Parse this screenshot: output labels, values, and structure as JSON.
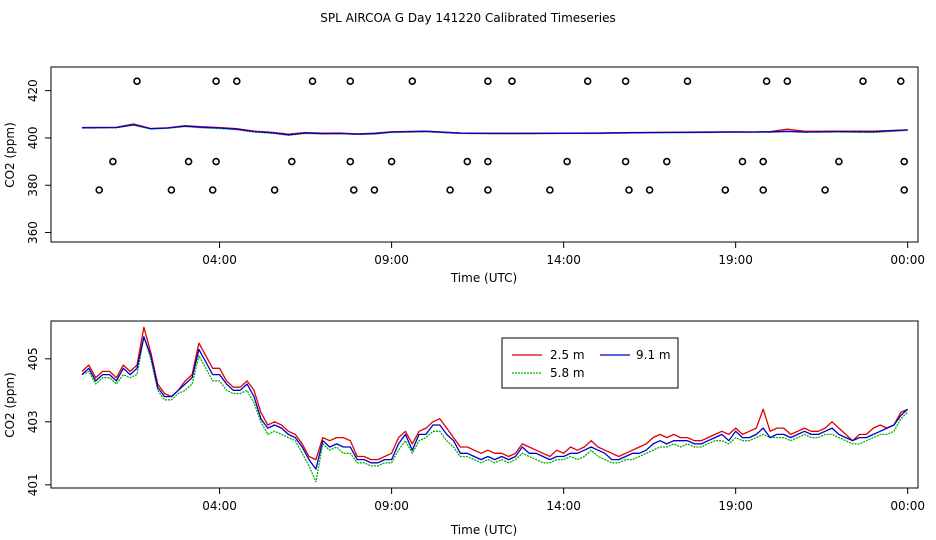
{
  "title": "SPL AIRCOA G  Day 141220  Calibrated Timeseries",
  "colors": {
    "s25": "#e00000",
    "s58": "#00b000",
    "s91": "#0000d0",
    "frame": "#000000",
    "flag": "#000000"
  },
  "chart_data": [
    {
      "type": "scatter",
      "name": "top",
      "xlabel": "Time (UTC)",
      "ylabel": "CO2 (ppm)",
      "xlim": [
        -0.9,
        24.3
      ],
      "ylim": [
        356,
        430
      ],
      "xticks": [
        4,
        9,
        14,
        19,
        24
      ],
      "xtick_labels": [
        "04:00",
        "09:00",
        "14:00",
        "19:00",
        "00:00"
      ],
      "yticks": [
        360,
        380,
        400,
        420
      ],
      "yticks_labels": [
        "360",
        "380",
        "400",
        "420"
      ],
      "flags": {
        "y424": [
          1.6,
          3.9,
          4.5,
          6.7,
          7.8,
          9.6,
          11.8,
          12.5,
          14.7,
          15.8,
          17.6,
          19.9,
          20.5,
          22.7,
          23.8
        ],
        "y390": [
          0.9,
          3.1,
          3.9,
          6.1,
          7.8,
          9.0,
          11.2,
          11.8,
          14.1,
          15.8,
          17.0,
          19.2,
          19.8,
          22.0,
          23.9
        ],
        "y378": [
          0.5,
          2.6,
          3.8,
          5.6,
          7.9,
          8.5,
          10.7,
          11.8,
          13.6,
          15.9,
          16.5,
          18.7,
          19.8,
          21.6,
          23.9
        ]
      },
      "series": [
        {
          "name": "2.5 m",
          "x": [
            0,
            1,
            1.5,
            2,
            2.5,
            3,
            3.5,
            4,
            4.5,
            5,
            5.5,
            6,
            6.5,
            7,
            7.5,
            8,
            8.5,
            9,
            10,
            11,
            12,
            13,
            14,
            15,
            16,
            17,
            18,
            19,
            19.5,
            20,
            20.5,
            21,
            22,
            23,
            24
          ],
          "y": [
            404.4,
            404.5,
            405.9,
            404.0,
            404.3,
            405.2,
            404.7,
            404.4,
            403.9,
            402.9,
            402.4,
            401.6,
            402.3,
            402.0,
            402.1,
            401.7,
            402.0,
            402.6,
            402.9,
            402.1,
            402.0,
            402.0,
            402.0,
            402.1,
            402.3,
            402.4,
            402.5,
            402.6,
            402.5,
            402.7,
            403.7,
            402.8,
            402.9,
            402.9,
            403.4
          ]
        },
        {
          "name": "5.8 m",
          "x": [
            0,
            1,
            1.5,
            2,
            2.5,
            3,
            3.5,
            4,
            4.5,
            5,
            5.5,
            6,
            6.5,
            7,
            7.5,
            8,
            8.5,
            9,
            10,
            11,
            12,
            13,
            14,
            15,
            16,
            17,
            18,
            19,
            19.5,
            20,
            20.5,
            21,
            22,
            23,
            24
          ],
          "y": [
            404.2,
            404.3,
            405.4,
            403.8,
            404.1,
            404.8,
            404.3,
            404.0,
            403.5,
            402.5,
            402.0,
            401.1,
            401.9,
            401.7,
            401.8,
            401.5,
            401.7,
            402.3,
            402.6,
            401.9,
            401.8,
            401.8,
            401.9,
            401.9,
            402.1,
            402.2,
            402.3,
            402.4,
            402.4,
            402.4,
            402.7,
            402.4,
            402.5,
            402.3,
            403.2
          ]
        },
        {
          "name": "9.1 m",
          "x": [
            0,
            1,
            1.5,
            2,
            2.5,
            3,
            3.5,
            4,
            4.5,
            5,
            5.5,
            6,
            6.5,
            7,
            7.5,
            8,
            8.5,
            9,
            10,
            11,
            12,
            13,
            14,
            15,
            16,
            17,
            18,
            19,
            19.5,
            20,
            20.5,
            21,
            22,
            23,
            24
          ],
          "y": [
            404.3,
            404.4,
            405.6,
            403.9,
            404.2,
            405.0,
            404.5,
            404.2,
            403.7,
            402.7,
            402.2,
            401.3,
            402.1,
            401.8,
            401.9,
            401.6,
            401.8,
            402.5,
            402.8,
            402.0,
            401.9,
            401.9,
            402.0,
            402.0,
            402.2,
            402.3,
            402.4,
            402.5,
            402.5,
            402.6,
            402.8,
            402.5,
            402.7,
            402.6,
            403.4
          ]
        }
      ]
    },
    {
      "type": "line",
      "name": "bottom",
      "xlabel": "Time (UTC)",
      "ylabel": "CO2 (ppm)",
      "xlim": [
        -0.9,
        24.3
      ],
      "ylim": [
        400.9,
        406.2
      ],
      "xticks": [
        4,
        9,
        14,
        19,
        24
      ],
      "xtick_labels": [
        "04:00",
        "09:00",
        "14:00",
        "19:00",
        "00:00"
      ],
      "yticks": [
        401,
        403,
        405
      ],
      "yticks_labels": [
        "401",
        "403",
        "405"
      ],
      "legend": {
        "position": "top-center",
        "entries": [
          "2.5 m",
          "9.1 m",
          "5.8 m"
        ]
      },
      "series": [
        {
          "name": "2.5 m",
          "x": [
            0,
            0.2,
            0.4,
            0.6,
            0.8,
            1.0,
            1.2,
            1.4,
            1.6,
            1.8,
            2.0,
            2.2,
            2.4,
            2.6,
            2.8,
            3.0,
            3.2,
            3.4,
            3.6,
            3.8,
            4.0,
            4.2,
            4.4,
            4.6,
            4.8,
            5.0,
            5.2,
            5.4,
            5.6,
            5.8,
            6.0,
            6.2,
            6.4,
            6.6,
            6.8,
            7.0,
            7.2,
            7.4,
            7.6,
            7.8,
            8.0,
            8.2,
            8.4,
            8.6,
            8.8,
            9.0,
            9.2,
            9.4,
            9.6,
            9.8,
            10.0,
            10.2,
            10.4,
            10.6,
            10.8,
            11.0,
            11.2,
            11.4,
            11.6,
            11.8,
            12.0,
            12.2,
            12.4,
            12.6,
            12.8,
            13.0,
            13.2,
            13.4,
            13.6,
            13.8,
            14.0,
            14.2,
            14.4,
            14.6,
            14.8,
            15.0,
            15.2,
            15.4,
            15.6,
            15.8,
            16.0,
            16.2,
            16.4,
            16.6,
            16.8,
            17.0,
            17.2,
            17.4,
            17.6,
            17.8,
            18.0,
            18.2,
            18.4,
            18.6,
            18.8,
            19.0,
            19.2,
            19.4,
            19.6,
            19.8,
            20.0,
            20.2,
            20.4,
            20.6,
            20.8,
            21.0,
            21.2,
            21.4,
            21.6,
            21.8,
            22.0,
            22.2,
            22.4,
            22.6,
            22.8,
            23.0,
            23.2,
            23.4,
            23.6,
            23.8,
            24.0
          ],
          "y": [
            404.6,
            404.8,
            404.4,
            404.6,
            404.6,
            404.4,
            404.8,
            404.6,
            404.8,
            406.0,
            405.2,
            404.2,
            403.9,
            403.8,
            404.0,
            404.3,
            404.5,
            405.5,
            405.1,
            404.7,
            404.7,
            404.3,
            404.1,
            404.1,
            404.3,
            404.0,
            403.3,
            402.9,
            403.0,
            402.9,
            402.7,
            402.6,
            402.3,
            401.9,
            401.8,
            402.5,
            402.4,
            402.5,
            402.5,
            402.4,
            401.9,
            401.9,
            401.8,
            401.8,
            401.9,
            402.0,
            402.5,
            402.7,
            402.3,
            402.7,
            402.8,
            403.0,
            403.1,
            402.8,
            402.5,
            402.2,
            402.2,
            402.1,
            402.0,
            402.1,
            402.0,
            402.0,
            401.9,
            402.0,
            402.3,
            402.2,
            402.1,
            402.0,
            401.9,
            402.1,
            402.0,
            402.2,
            402.1,
            402.2,
            402.4,
            402.2,
            402.1,
            402.0,
            401.9,
            402.0,
            402.1,
            402.2,
            402.3,
            402.5,
            402.6,
            402.5,
            402.6,
            402.5,
            402.5,
            402.4,
            402.4,
            402.5,
            402.6,
            402.7,
            402.6,
            402.8,
            402.6,
            402.7,
            402.8,
            403.4,
            402.7,
            402.8,
            402.8,
            402.6,
            402.7,
            402.8,
            402.7,
            402.7,
            402.8,
            403.0,
            402.8,
            402.6,
            402.4,
            402.6,
            402.6,
            402.8,
            402.9,
            402.8,
            402.9,
            403.3,
            403.4
          ]
        },
        {
          "name": "5.8 m",
          "x": [
            0,
            0.2,
            0.4,
            0.6,
            0.8,
            1.0,
            1.2,
            1.4,
            1.6,
            1.8,
            2.0,
            2.2,
            2.4,
            2.6,
            2.8,
            3.0,
            3.2,
            3.4,
            3.6,
            3.8,
            4.0,
            4.2,
            4.4,
            4.6,
            4.8,
            5.0,
            5.2,
            5.4,
            5.6,
            5.8,
            6.0,
            6.2,
            6.4,
            6.6,
            6.8,
            7.0,
            7.2,
            7.4,
            7.6,
            7.8,
            8.0,
            8.2,
            8.4,
            8.6,
            8.8,
            9.0,
            9.2,
            9.4,
            9.6,
            9.8,
            10.0,
            10.2,
            10.4,
            10.6,
            10.8,
            11.0,
            11.2,
            11.4,
            11.6,
            11.8,
            12.0,
            12.2,
            12.4,
            12.6,
            12.8,
            13.0,
            13.2,
            13.4,
            13.6,
            13.8,
            14.0,
            14.2,
            14.4,
            14.6,
            14.8,
            15.0,
            15.2,
            15.4,
            15.6,
            15.8,
            16.0,
            16.2,
            16.4,
            16.6,
            16.8,
            17.0,
            17.2,
            17.4,
            17.6,
            17.8,
            18.0,
            18.2,
            18.4,
            18.6,
            18.8,
            19.0,
            19.2,
            19.4,
            19.6,
            19.8,
            20.0,
            20.2,
            20.4,
            20.6,
            20.8,
            21.0,
            21.2,
            21.4,
            21.6,
            21.8,
            22.0,
            22.2,
            22.4,
            22.6,
            22.8,
            23.0,
            23.2,
            23.4,
            23.6,
            23.8,
            24.0
          ],
          "y": [
            404.5,
            404.6,
            404.2,
            404.4,
            404.4,
            404.2,
            404.5,
            404.4,
            404.5,
            405.7,
            405.0,
            404.0,
            403.7,
            403.7,
            403.9,
            404.0,
            404.2,
            405.1,
            404.7,
            404.3,
            404.3,
            404.0,
            403.9,
            403.9,
            404.0,
            403.6,
            403.0,
            402.6,
            402.7,
            402.6,
            402.5,
            402.4,
            402.0,
            401.6,
            401.1,
            402.3,
            402.1,
            402.2,
            402.0,
            402.0,
            401.7,
            401.7,
            401.6,
            401.6,
            401.7,
            401.7,
            402.1,
            402.4,
            402.0,
            402.4,
            402.5,
            402.7,
            402.7,
            402.4,
            402.2,
            401.9,
            401.9,
            401.8,
            401.7,
            401.8,
            401.7,
            401.8,
            401.7,
            401.8,
            402.0,
            401.9,
            401.8,
            401.7,
            401.7,
            401.8,
            401.8,
            401.9,
            401.8,
            401.9,
            402.1,
            401.9,
            401.8,
            401.7,
            401.7,
            401.8,
            401.8,
            401.9,
            402.0,
            402.1,
            402.2,
            402.2,
            402.3,
            402.2,
            402.3,
            402.2,
            402.2,
            402.3,
            402.4,
            402.4,
            402.3,
            402.5,
            402.4,
            402.4,
            402.5,
            402.6,
            402.5,
            402.5,
            402.5,
            402.4,
            402.5,
            402.6,
            402.5,
            402.5,
            402.6,
            402.6,
            402.5,
            402.4,
            402.3,
            402.3,
            402.4,
            402.5,
            402.6,
            402.6,
            402.7,
            403.1,
            403.3
          ]
        },
        {
          "name": "9.1 m",
          "x": [
            0,
            0.2,
            0.4,
            0.6,
            0.8,
            1.0,
            1.2,
            1.4,
            1.6,
            1.8,
            2.0,
            2.2,
            2.4,
            2.6,
            2.8,
            3.0,
            3.2,
            3.4,
            3.6,
            3.8,
            4.0,
            4.2,
            4.4,
            4.6,
            4.8,
            5.0,
            5.2,
            5.4,
            5.6,
            5.8,
            6.0,
            6.2,
            6.4,
            6.6,
            6.8,
            7.0,
            7.2,
            7.4,
            7.6,
            7.8,
            8.0,
            8.2,
            8.4,
            8.6,
            8.8,
            9.0,
            9.2,
            9.4,
            9.6,
            9.8,
            10.0,
            10.2,
            10.4,
            10.6,
            10.8,
            11.0,
            11.2,
            11.4,
            11.6,
            11.8,
            12.0,
            12.2,
            12.4,
            12.6,
            12.8,
            13.0,
            13.2,
            13.4,
            13.6,
            13.8,
            14.0,
            14.2,
            14.4,
            14.6,
            14.8,
            15.0,
            15.2,
            15.4,
            15.6,
            15.8,
            16.0,
            16.2,
            16.4,
            16.6,
            16.8,
            17.0,
            17.2,
            17.4,
            17.6,
            17.8,
            18.0,
            18.2,
            18.4,
            18.6,
            18.8,
            19.0,
            19.2,
            19.4,
            19.6,
            19.8,
            20.0,
            20.2,
            20.4,
            20.6,
            20.8,
            21.0,
            21.2,
            21.4,
            21.6,
            21.8,
            22.0,
            22.2,
            22.4,
            22.6,
            22.8,
            23.0,
            23.2,
            23.4,
            23.6,
            23.8,
            24.0
          ],
          "y": [
            404.5,
            404.7,
            404.3,
            404.5,
            404.5,
            404.3,
            404.7,
            404.5,
            404.7,
            405.7,
            405.1,
            404.1,
            403.8,
            403.8,
            404.0,
            404.2,
            404.4,
            405.3,
            404.9,
            404.5,
            404.5,
            404.2,
            404.0,
            404.0,
            404.2,
            403.8,
            403.1,
            402.8,
            402.9,
            402.8,
            402.6,
            402.5,
            402.2,
            401.8,
            401.5,
            402.4,
            402.2,
            402.3,
            402.2,
            402.2,
            401.8,
            401.8,
            401.7,
            401.7,
            401.8,
            401.8,
            402.3,
            402.6,
            402.1,
            402.6,
            402.6,
            402.9,
            402.9,
            402.6,
            402.4,
            402.0,
            402.0,
            401.9,
            401.8,
            401.9,
            401.8,
            401.9,
            401.8,
            401.9,
            402.2,
            402.0,
            402.0,
            401.9,
            401.8,
            401.9,
            401.9,
            402.0,
            402.0,
            402.1,
            402.2,
            402.1,
            402.0,
            401.8,
            401.8,
            401.9,
            402.0,
            402.0,
            402.1,
            402.3,
            402.4,
            402.3,
            402.4,
            402.4,
            402.4,
            402.3,
            402.3,
            402.4,
            402.5,
            402.6,
            402.4,
            402.7,
            402.5,
            402.5,
            402.6,
            402.8,
            402.5,
            402.6,
            402.6,
            402.5,
            402.6,
            402.7,
            402.6,
            402.6,
            402.7,
            402.8,
            402.6,
            402.5,
            402.4,
            402.5,
            402.5,
            402.6,
            402.7,
            402.8,
            402.9,
            403.2,
            403.4
          ]
        }
      ]
    }
  ]
}
